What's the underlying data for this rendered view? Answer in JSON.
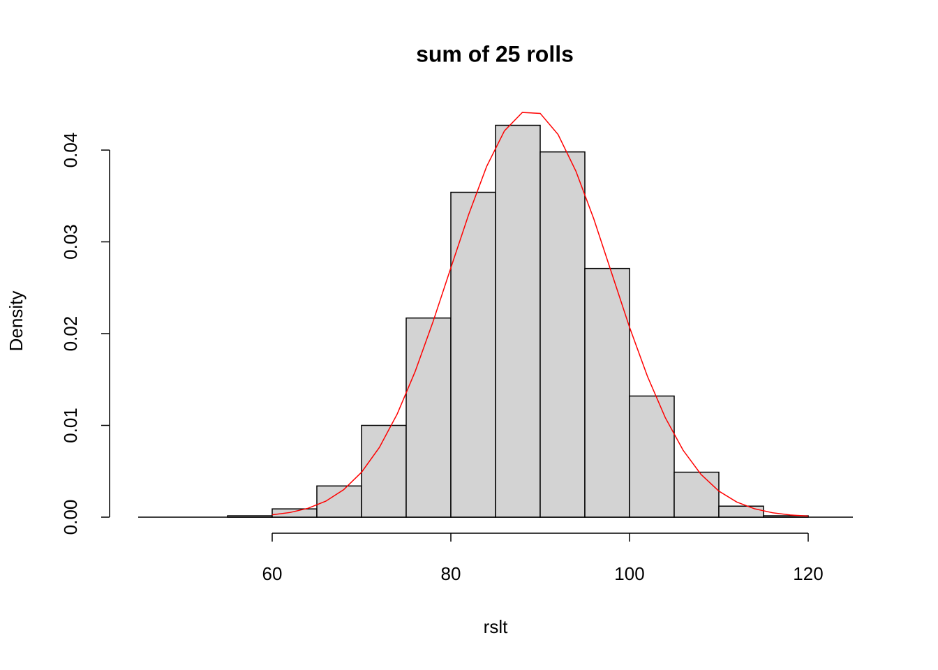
{
  "chart_data": {
    "type": "histogram",
    "title": "sum of 25 rolls",
    "xlabel": "rslt",
    "ylabel": "Density",
    "bins": [
      55,
      60,
      65,
      70,
      75,
      80,
      85,
      90,
      95,
      100,
      105,
      110,
      115,
      120
    ],
    "values": [
      0.00015,
      0.0009,
      0.0034,
      0.01,
      0.0217,
      0.0354,
      0.0427,
      0.0398,
      0.0271,
      0.0132,
      0.0049,
      0.0012,
      0.00015
    ],
    "color": "#d3d3d3",
    "edgecolor": "#000000",
    "xlim": [
      45,
      125
    ],
    "ylim": [
      0,
      0.0443
    ],
    "xticks": [
      60,
      80,
      100,
      120
    ],
    "yticks": [
      {
        "value": 0,
        "label": "0.00"
      },
      0.01,
      0.02,
      0.03,
      0.04
    ],
    "curve": {
      "color": "#ff0000",
      "x": [
        60,
        62,
        64,
        66,
        68,
        70,
        72,
        74,
        76,
        78,
        80,
        82,
        84,
        86,
        88,
        90,
        92,
        94,
        96,
        98,
        100,
        102,
        104,
        106,
        108,
        110,
        112,
        114,
        116,
        118,
        120
      ],
      "values": [
        0.000256,
        0.000509,
        0.000965,
        0.00174,
        0.00299,
        0.00489,
        0.0076,
        0.01125,
        0.01586,
        0.02128,
        0.02717,
        0.033,
        0.0382,
        0.0421,
        0.0441,
        0.044,
        0.0417,
        0.0377,
        0.0325,
        0.0266,
        0.0207,
        0.01536,
        0.01085,
        0.00729,
        0.00466,
        0.00284,
        0.00165,
        0.00091,
        0.00048,
        0.00024,
        0.00011
      ]
    }
  }
}
